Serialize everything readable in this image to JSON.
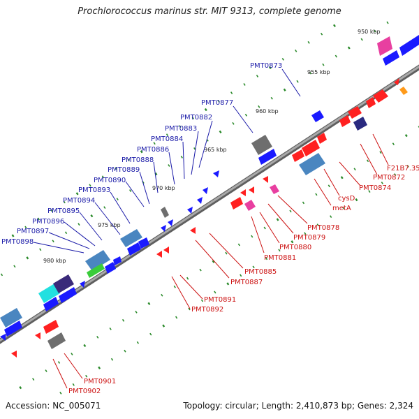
{
  "title": "Prochlorococcus marinus str. MIT 9313, complete genome",
  "footer": {
    "accession": "Accession: NC_005071",
    "summary": "Topology: circular; Length: 2,410,873 bp; Genes: 2,324"
  },
  "scale_labels": [
    "950 kbp",
    "955 kbp",
    "960 kbp",
    "965 kbp",
    "970 kbp",
    "975 kbp",
    "980 kbp"
  ],
  "upper_labels": [
    "PMT0873",
    "PMT0877",
    "PMT0882",
    "PMT0883",
    "PMT0884",
    "PMT0886",
    "PMT0888",
    "PMT0889",
    "PMT0890",
    "PMT0893",
    "PMT0894",
    "PMT0895",
    "PMT0896",
    "PMT0897",
    "PMT0898"
  ],
  "lower_labels": [
    "F21B7.35",
    "PMT0872",
    "PMT0874",
    "cysD",
    "metA",
    "PMT0878",
    "PMT0879",
    "PMT0880",
    "PMT0881",
    "PMT0885",
    "PMT0887",
    "PMT0891",
    "PMT0892",
    "PMT0901",
    "PMT0902"
  ],
  "colors": {
    "forward_gene": "#1a1aff",
    "reverse_gene": "#ff2020",
    "forward_label": "#1a1aa8",
    "reverse_label": "#cc1111",
    "backbone": "#888888",
    "tick": "#2a8a2a"
  }
}
